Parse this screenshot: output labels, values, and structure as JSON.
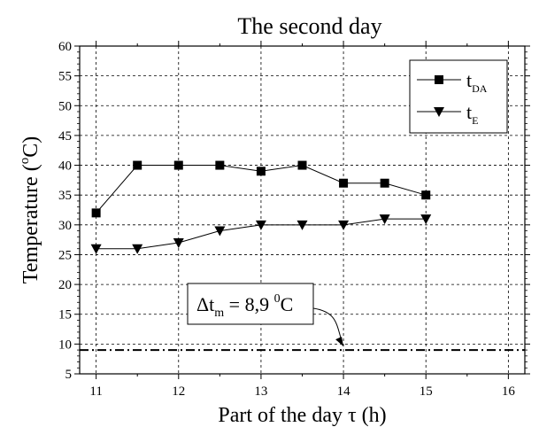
{
  "chart_data": {
    "type": "line",
    "title": "The second day",
    "xlabel": "Part of the day τ (h)",
    "ylabel": {
      "main": "Temperature (",
      "sup": "o",
      "unit": "C)"
    },
    "xlim": [
      10.8,
      16.2
    ],
    "ylim": [
      5,
      60
    ],
    "xticks": [
      11,
      12,
      13,
      14,
      15,
      16
    ],
    "yticks": [
      5,
      10,
      15,
      20,
      25,
      30,
      35,
      40,
      45,
      50,
      55,
      60
    ],
    "grid": true,
    "legend_position": "top-right",
    "series": [
      {
        "name": "t",
        "name_sub": "DA",
        "marker": "square",
        "color": "#000000",
        "x": [
          11,
          11.5,
          12,
          12.5,
          13,
          13.5,
          14,
          14.5,
          15
        ],
        "y": [
          32,
          40,
          40,
          40,
          39,
          40,
          37,
          37,
          35
        ]
      },
      {
        "name": "t",
        "name_sub": "E",
        "marker": "triangle-down",
        "color": "#000000",
        "x": [
          11,
          11.5,
          12,
          12.5,
          13,
          13.5,
          14,
          14.5,
          15
        ],
        "y": [
          26,
          26,
          27,
          29,
          30,
          30,
          30,
          31,
          31
        ]
      }
    ],
    "reference_line": {
      "y": 9,
      "style": "dash-dot"
    },
    "annotation": {
      "prefix": "Δt",
      "sub": "m",
      "value": " = 8,9 ",
      "sup": "0",
      "unit": "C",
      "arrow_target_x": 14,
      "arrow_target_y": 9
    }
  }
}
